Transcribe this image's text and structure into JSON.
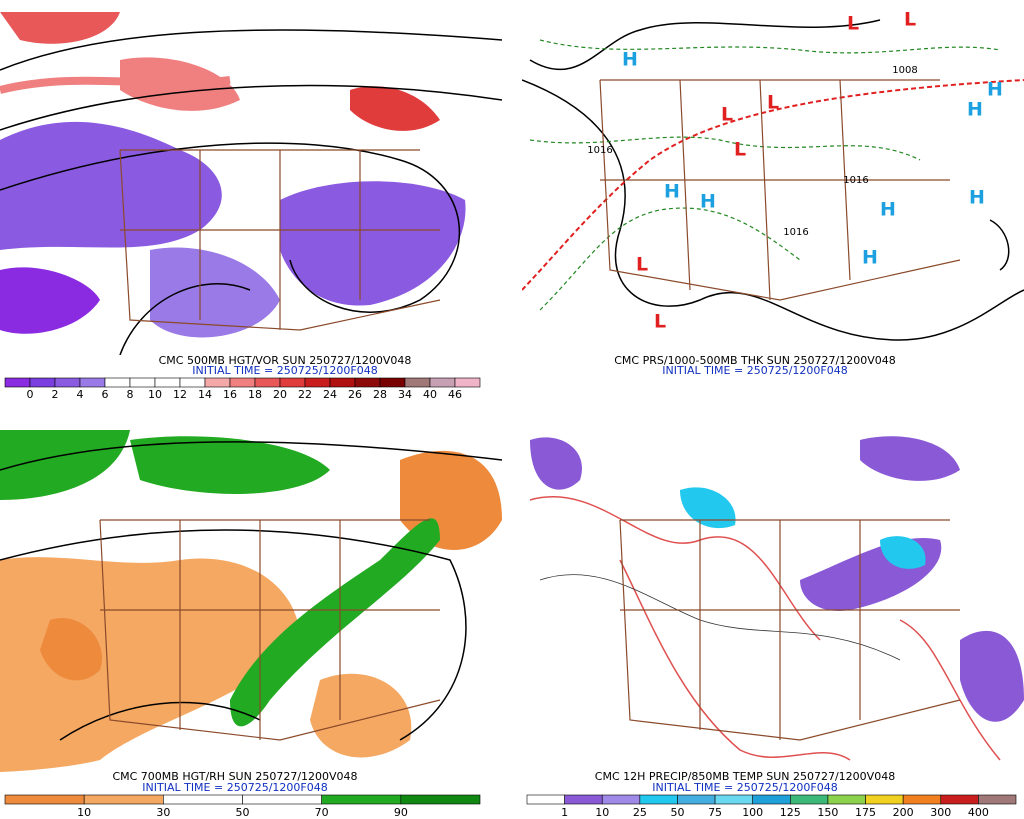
{
  "panels": [
    {
      "title": "CMC 500MB HGT/VOR SUN 250727/1200V048",
      "initial_time": "INITIAL TIME = 250725/1200F048",
      "colorbar": {
        "labels": [
          "0",
          "2",
          "4",
          "6",
          "8",
          "10",
          "12",
          "14",
          "16",
          "18",
          "20",
          "22",
          "24",
          "26",
          "28",
          "34",
          "40",
          "46"
        ],
        "colors": [
          "#8a2be2",
          "#7b3fe0",
          "#8a5ae0",
          "#9a7ae6",
          "#ffffff",
          "#ffffff",
          "#ffffff",
          "#ffffff",
          "#f4a8a8",
          "#f08080",
          "#e85858",
          "#e03c3c",
          "#c81e1e",
          "#b01010",
          "#8c0a0a",
          "#780000",
          "#a07878",
          "#c8a0b4",
          "#f0b4c8"
        ]
      }
    },
    {
      "title": "CMC PRS/1000-500MB THK SUN 250727/1200V048",
      "initial_time": "INITIAL TIME = 250725/1200F048",
      "map_labels": [
        "H",
        "H",
        "H",
        "H",
        "H",
        "H",
        "H",
        "H",
        "L",
        "L",
        "L",
        "L",
        "L",
        "L",
        "L",
        "1016",
        "1016",
        "1016",
        "1008"
      ]
    },
    {
      "title": "CMC 700MB HGT/RH SUN 250727/1200V048",
      "initial_time": "INITIAL TIME = 250725/1200F048",
      "colorbar": {
        "labels": [
          "10",
          "30",
          "50",
          "70",
          "90"
        ],
        "colors": [
          "#ee8a3c",
          "#f4a862",
          "#ffffff",
          "#ffffff",
          "#22aa22",
          "#118811"
        ]
      }
    },
    {
      "title": "CMC 12H PRECIP/850MB TEMP SUN 250727/1200V048",
      "initial_time": "INITIAL TIME = 250725/1200F048",
      "colorbar": {
        "labels": [
          "1",
          "10",
          "25",
          "50",
          "75",
          "100",
          "125",
          "150",
          "175",
          "200",
          "300",
          "400"
        ],
        "colors": [
          "#ffffff",
          "#8a5ad6",
          "#a08ae8",
          "#22c8ee",
          "#44aee0",
          "#6ad8f0",
          "#20a0d8",
          "#3cb878",
          "#8cd24c",
          "#f0d020",
          "#f08020",
          "#c81e1e",
          "#a07878"
        ]
      }
    }
  ]
}
